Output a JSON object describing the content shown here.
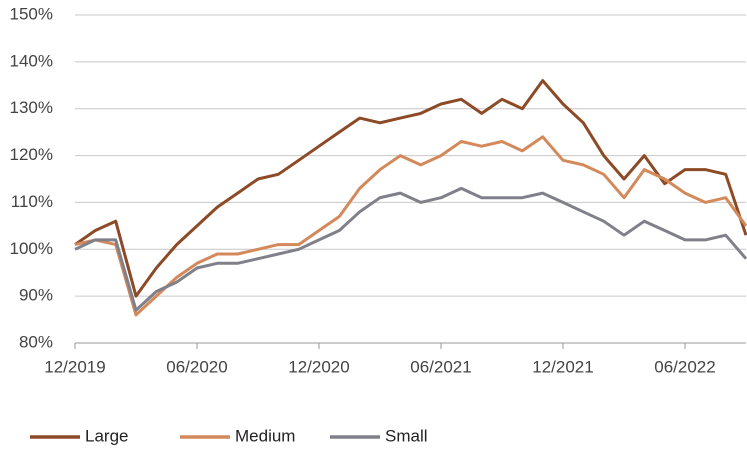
{
  "chart_data": {
    "type": "line",
    "x": [
      "12/2019",
      null,
      null,
      null,
      null,
      null,
      "06/2020",
      null,
      null,
      null,
      null,
      null,
      "12/2020",
      null,
      null,
      null,
      null,
      null,
      "06/2021",
      null,
      null,
      null,
      null,
      null,
      "12/2021",
      null,
      null,
      null,
      null,
      null,
      "06/2022",
      null,
      null,
      null
    ],
    "series": [
      {
        "name": "Large",
        "color": "#8c4a26",
        "values": [
          101,
          104,
          106,
          90,
          96,
          101,
          105,
          109,
          112,
          115,
          116,
          119,
          122,
          125,
          128,
          127,
          128,
          129,
          131,
          132,
          129,
          132,
          130,
          136,
          131,
          127,
          120,
          115,
          120,
          114,
          117,
          117,
          116,
          103
        ]
      },
      {
        "name": "Medium",
        "color": "#d4895a",
        "values": [
          101,
          102,
          101,
          86,
          90,
          94,
          97,
          99,
          99,
          100,
          101,
          101,
          104,
          107,
          113,
          117,
          120,
          118,
          120,
          123,
          122,
          123,
          121,
          124,
          119,
          118,
          116,
          111,
          117,
          115,
          112,
          110,
          111,
          105
        ]
      },
      {
        "name": "Small",
        "color": "#80808a",
        "values": [
          100,
          102,
          102,
          87,
          91,
          93,
          96,
          97,
          97,
          98,
          99,
          100,
          102,
          104,
          108,
          111,
          112,
          110,
          111,
          113,
          111,
          111,
          111,
          112,
          110,
          108,
          106,
          103,
          106,
          104,
          102,
          102,
          103,
          98
        ]
      }
    ],
    "ylim": [
      80,
      150
    ],
    "yticks": [
      {
        "value": 80,
        "label": "80%"
      },
      {
        "value": 90,
        "label": "90%"
      },
      {
        "value": 100,
        "label": "100%"
      },
      {
        "value": 110,
        "label": "110%"
      },
      {
        "value": 120,
        "label": "120%"
      },
      {
        "value": 130,
        "label": "130%"
      },
      {
        "value": 140,
        "label": "140%"
      },
      {
        "value": 150,
        "label": "150%"
      }
    ],
    "grid": true,
    "legend": "bottom"
  }
}
